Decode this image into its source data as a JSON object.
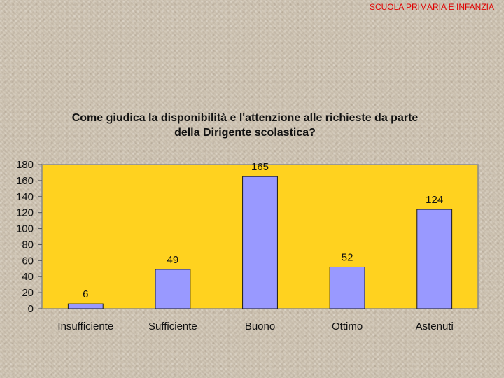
{
  "header": {
    "label": "SCUOLA PRIMARIA E INFANZIA"
  },
  "colors": {
    "plot_background": "#ffd21f",
    "bar_fill": "#9999ff",
    "bar_stroke": "#1a1a1a",
    "header_text": "#e00000"
  },
  "chart_data": {
    "type": "bar",
    "title_lines": [
      "Come giudica la disponibilità e l'attenzione alle richieste da parte",
      "della Dirigente scolastica?"
    ],
    "categories": [
      "Insufficiente",
      "Sufficiente",
      "Buono",
      "Ottimo",
      "Astenuti"
    ],
    "values": [
      6,
      49,
      165,
      52,
      124
    ],
    "ylim": [
      0,
      180
    ],
    "yticks": [
      0,
      20,
      40,
      60,
      80,
      100,
      120,
      140,
      160,
      180
    ],
    "xlabel": "",
    "ylabel": "",
    "grid": false,
    "data_labels": true
  }
}
